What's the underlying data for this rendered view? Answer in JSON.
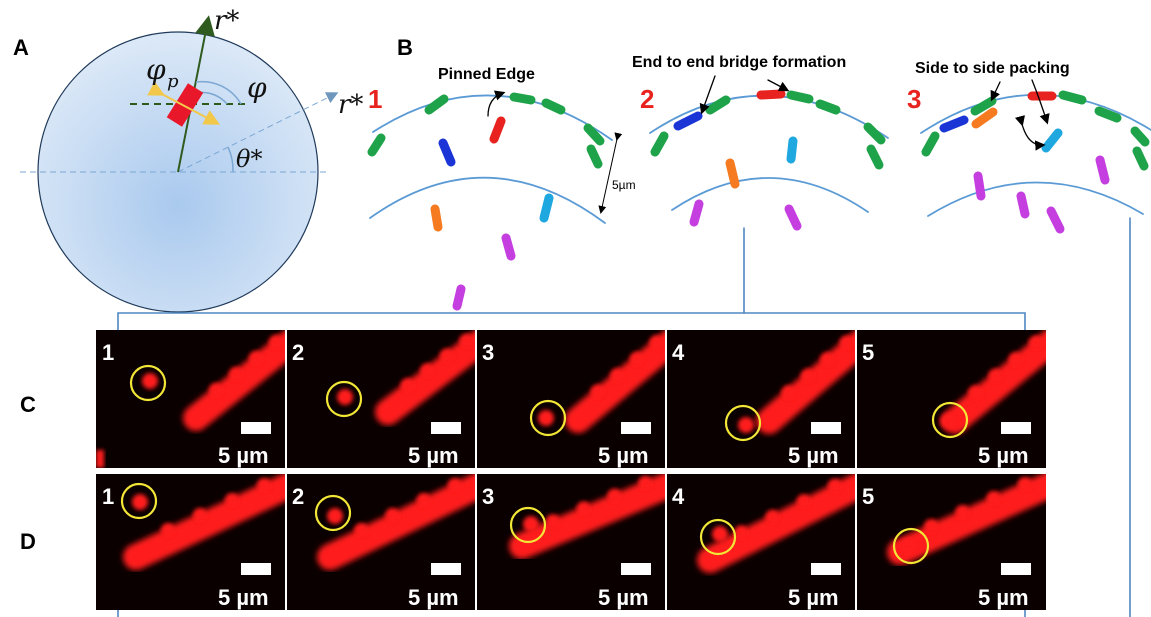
{
  "panels": {
    "a": "A",
    "b": "B",
    "c": "C",
    "d": "D"
  },
  "panel_a": {
    "r_star_top": "r*",
    "r_star_right": "r*",
    "phi": "φ",
    "phi_p": "φ",
    "phi_p_sub": "p",
    "theta_star": "θ*"
  },
  "panel_b": {
    "stages": [
      "1",
      "2",
      "3"
    ],
    "captions": [
      "Pinned Edge",
      "End to end bridge formation",
      "Side to side packing"
    ],
    "spacing_label": "5µm"
  },
  "micrographs": {
    "frame_numbers": [
      "1",
      "2",
      "3",
      "4",
      "5"
    ],
    "scale_label": "5 µm"
  },
  "colors": {
    "curve": "#5b9bd5",
    "stage_number": "#e8231f",
    "green": "#1fa34a",
    "red": "#e8231f",
    "blue": "#1a34d6",
    "orange": "#f57a20",
    "cyan": "#1fa7e0",
    "magenta": "#c43ee0",
    "microscopy_red": "#ff1a1a",
    "circle_marker": "#f2e636"
  }
}
